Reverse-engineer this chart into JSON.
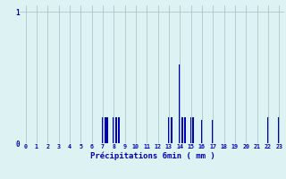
{
  "title": "",
  "xlabel": "Précipitations 6min ( mm )",
  "background_color": "#ddf2f2",
  "bar_color": "#0000bb",
  "grid_color": "#aac8c8",
  "text_color": "#0000bb",
  "xlim": [
    -0.5,
    23.5
  ],
  "ylim": [
    0,
    1.05
  ],
  "yticks": [
    0,
    1
  ],
  "xticks": [
    0,
    1,
    2,
    3,
    4,
    5,
    6,
    7,
    8,
    9,
    10,
    11,
    12,
    13,
    14,
    15,
    16,
    17,
    18,
    19,
    20,
    21,
    22,
    23
  ],
  "bars": [
    [
      7.0,
      0.2
    ],
    [
      7.22,
      0.2
    ],
    [
      7.44,
      0.2
    ],
    [
      8.0,
      0.2
    ],
    [
      8.22,
      0.2
    ],
    [
      8.44,
      0.2
    ],
    [
      13.0,
      0.2
    ],
    [
      13.22,
      0.2
    ],
    [
      14.0,
      0.6
    ],
    [
      14.22,
      0.2
    ],
    [
      14.44,
      0.2
    ],
    [
      15.0,
      0.2
    ],
    [
      15.22,
      0.2
    ],
    [
      16.0,
      0.18
    ],
    [
      17.0,
      0.18
    ],
    [
      22.0,
      0.2
    ],
    [
      23.0,
      0.2
    ]
  ],
  "bar_width": 0.15
}
